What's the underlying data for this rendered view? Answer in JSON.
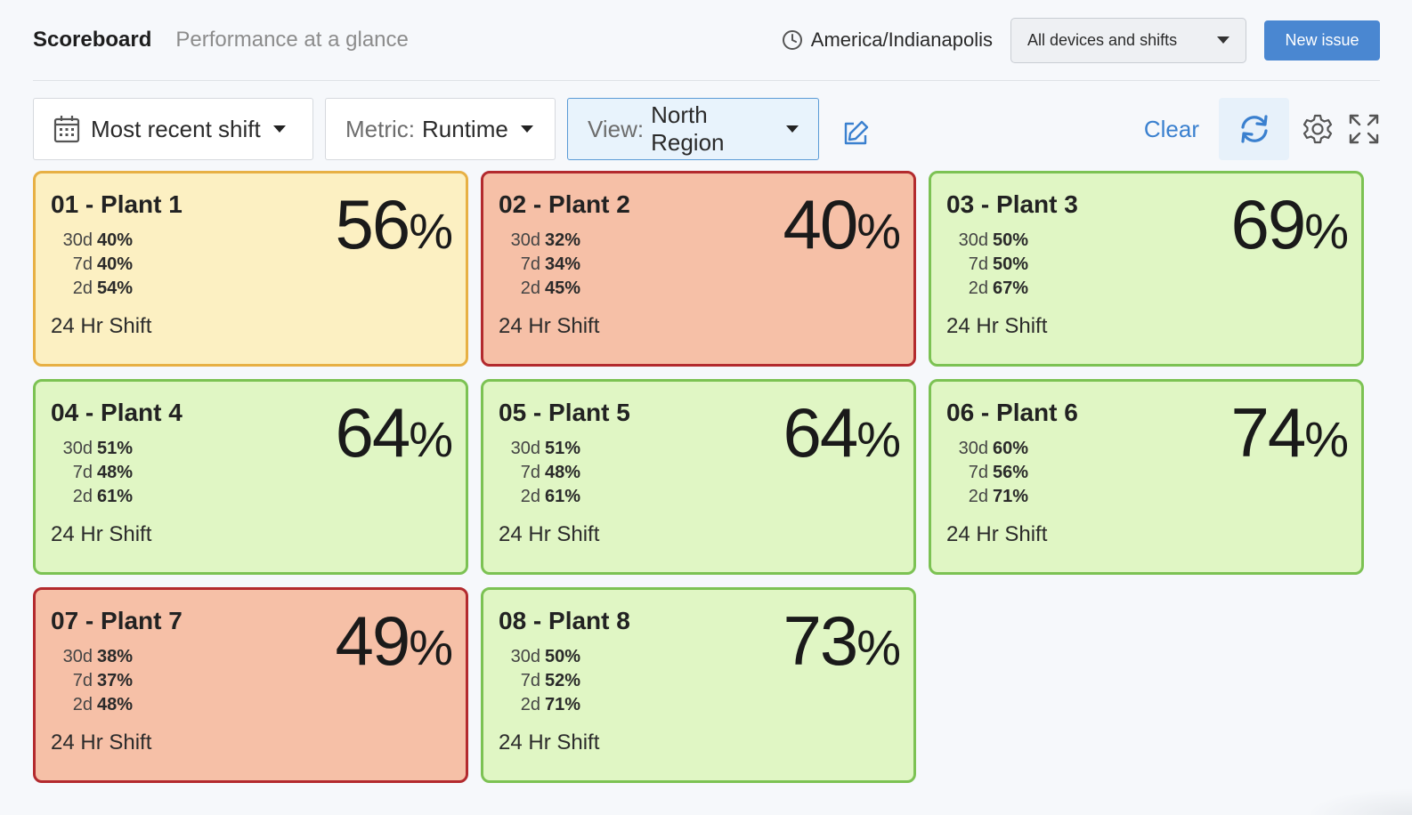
{
  "header": {
    "title": "Scoreboard",
    "subtitle": "Performance at a glance",
    "timezone": "America/Indianapolis",
    "device_filter": "All devices and shifts",
    "new_issue_label": "New issue"
  },
  "toolbar": {
    "date_range": "Most recent shift",
    "metric_label": "Metric:",
    "metric_value": "Runtime",
    "view_label": "View:",
    "view_value": "North Region",
    "clear_label": "Clear"
  },
  "colors": {
    "yellow_bg": "#fcf0c2",
    "yellow_border": "#e7b044",
    "red_bg": "#f6c0a7",
    "red_border": "#b32a2e",
    "green_bg": "#e0f6c4",
    "green_border": "#7cc253",
    "accent": "#4a87d1"
  },
  "cards": [
    {
      "name": "01 - Plant 1",
      "value": "56",
      "unit": "%",
      "d30": "40%",
      "d7": "40%",
      "d2": "54%",
      "shift": "24 Hr Shift",
      "status": "yellow"
    },
    {
      "name": "02 - Plant 2",
      "value": "40",
      "unit": "%",
      "d30": "32%",
      "d7": "34%",
      "d2": "45%",
      "shift": "24 Hr Shift",
      "status": "red"
    },
    {
      "name": "03 - Plant 3",
      "value": "69",
      "unit": "%",
      "d30": "50%",
      "d7": "50%",
      "d2": "67%",
      "shift": "24 Hr Shift",
      "status": "green"
    },
    {
      "name": "04 - Plant 4",
      "value": "64",
      "unit": "%",
      "d30": "51%",
      "d7": "48%",
      "d2": "61%",
      "shift": "24 Hr Shift",
      "status": "green"
    },
    {
      "name": "05 - Plant 5",
      "value": "64",
      "unit": "%",
      "d30": "51%",
      "d7": "48%",
      "d2": "61%",
      "shift": "24 Hr Shift",
      "status": "green"
    },
    {
      "name": "06 - Plant 6",
      "value": "74",
      "unit": "%",
      "d30": "60%",
      "d7": "56%",
      "d2": "71%",
      "shift": "24 Hr Shift",
      "status": "green"
    },
    {
      "name": "07 - Plant 7",
      "value": "49",
      "unit": "%",
      "d30": "38%",
      "d7": "37%",
      "d2": "48%",
      "shift": "24 Hr Shift",
      "status": "red"
    },
    {
      "name": "08 - Plant 8",
      "value": "73",
      "unit": "%",
      "d30": "50%",
      "d7": "52%",
      "d2": "71%",
      "shift": "24 Hr Shift",
      "status": "green"
    }
  ],
  "stat_labels": {
    "d30": "30d",
    "d7": "7d",
    "d2": "2d"
  }
}
